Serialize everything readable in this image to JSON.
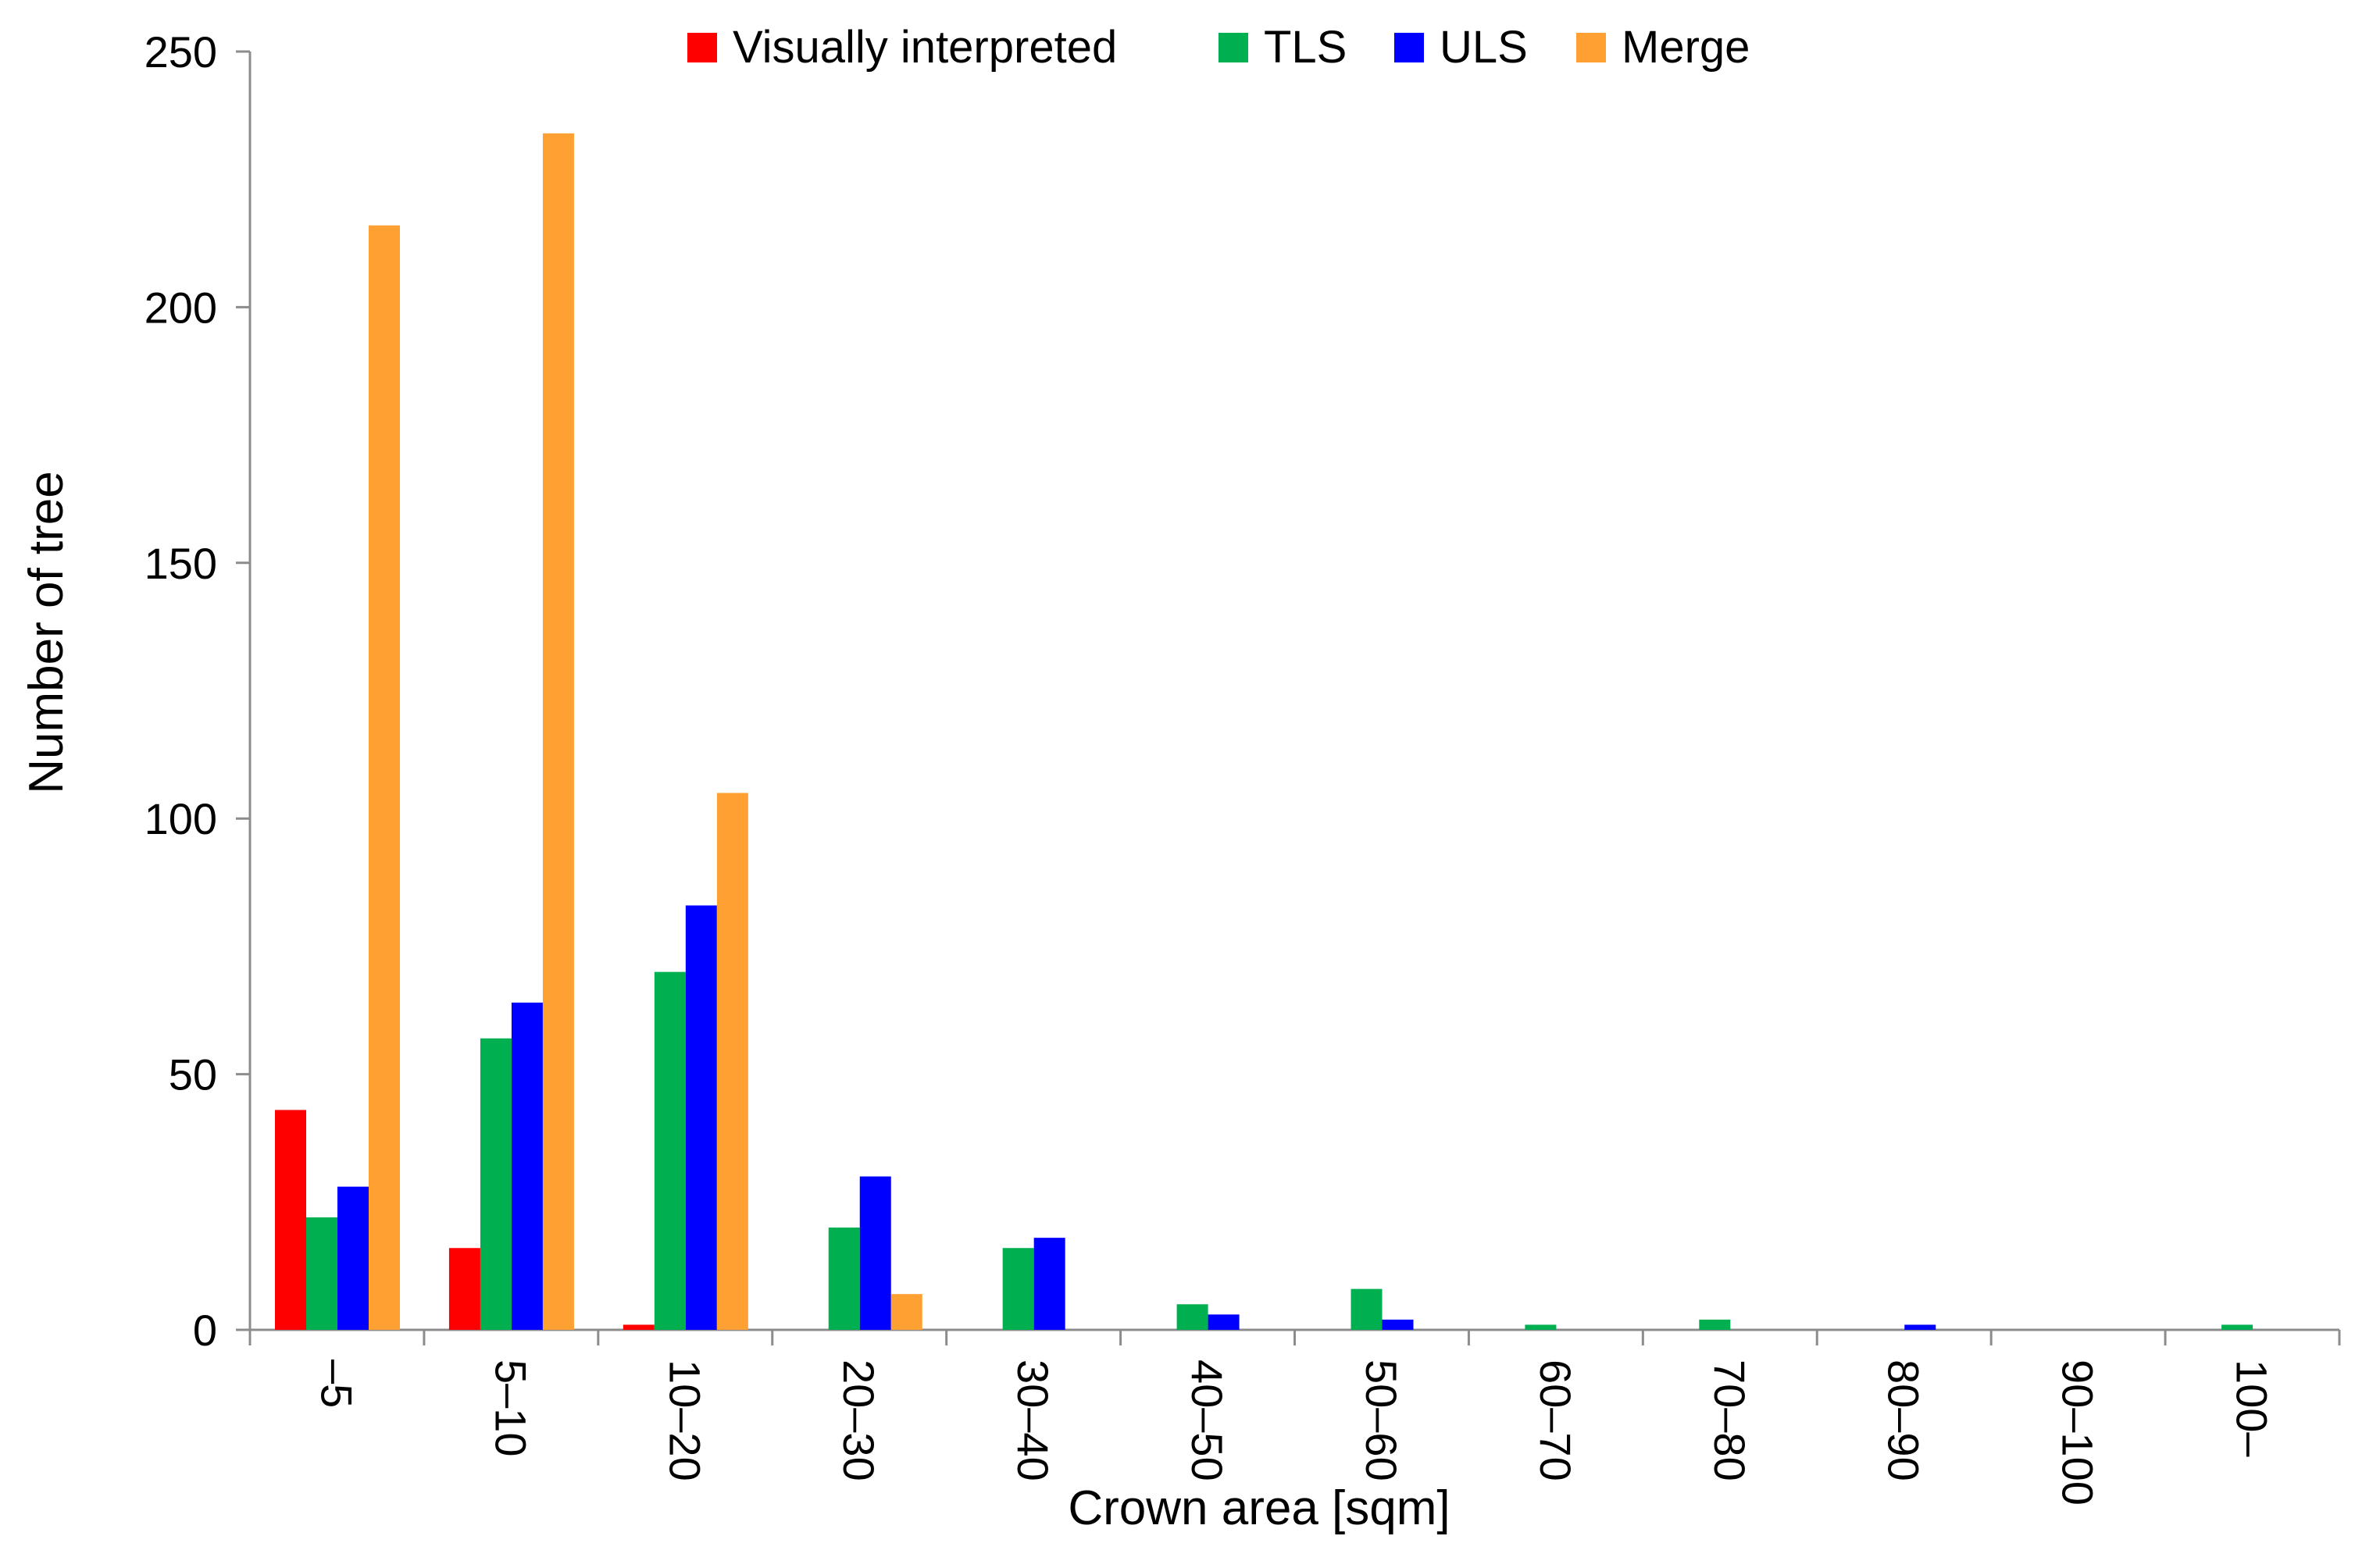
{
  "chart_data": {
    "type": "bar",
    "title": "",
    "xlabel": "Crown area [sqm]",
    "ylabel": "Number of tree",
    "ylim": [
      0,
      250
    ],
    "yticks": [
      0,
      50,
      100,
      150,
      200,
      250
    ],
    "grid": false,
    "legend_position": "top-center",
    "categories": [
      "–5",
      "5–10",
      "10–20",
      "20–30",
      "30–40",
      "40–50",
      "50–60",
      "60–70",
      "70–80",
      "80–90",
      "90–100",
      "100–"
    ],
    "series": [
      {
        "name": "Visually interpreted",
        "color": "#ff0000",
        "values": [
          43,
          16,
          1,
          0,
          0,
          0,
          0,
          0,
          0,
          0,
          0,
          0
        ]
      },
      {
        "name": "TLS",
        "color": "#00b050",
        "values": [
          22,
          57,
          70,
          20,
          16,
          5,
          8,
          1,
          2,
          0,
          0,
          1
        ]
      },
      {
        "name": "ULS",
        "color": "#0000ff",
        "values": [
          28,
          64,
          83,
          30,
          18,
          3,
          2,
          0,
          0,
          1,
          0,
          0
        ]
      },
      {
        "name": "Merge",
        "color": "#ffa033",
        "values": [
          216,
          234,
          105,
          7,
          0,
          0,
          0,
          0,
          0,
          0,
          0,
          0
        ]
      }
    ]
  }
}
